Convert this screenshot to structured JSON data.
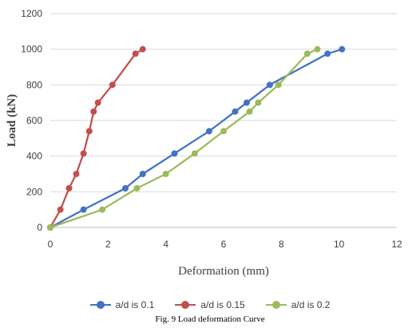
{
  "chart_data": {
    "type": "line",
    "xlabel": "Deformation (mm)",
    "ylabel": "Load (kN)",
    "xlim": [
      0,
      12
    ],
    "ylim": [
      0,
      1200
    ],
    "x_ticks": [
      0,
      2,
      4,
      6,
      8,
      10,
      12
    ],
    "y_ticks": [
      0,
      200,
      400,
      600,
      800,
      1000,
      1200
    ],
    "grid": "horizontal",
    "legend_position": "bottom",
    "series": [
      {
        "name": "a/d is 0.1",
        "color": "#4472c4",
        "points": [
          [
            0,
            0
          ],
          [
            1.15,
            100
          ],
          [
            2.6,
            220
          ],
          [
            3.2,
            300
          ],
          [
            4.3,
            415
          ],
          [
            5.5,
            540
          ],
          [
            6.4,
            650
          ],
          [
            6.8,
            700
          ],
          [
            7.6,
            800
          ],
          [
            9.6,
            975
          ],
          [
            10.1,
            1000
          ]
        ]
      },
      {
        "name": "a/d is 0.15",
        "color": "#c0504d",
        "points": [
          [
            0,
            0
          ],
          [
            0.35,
            100
          ],
          [
            0.65,
            220
          ],
          [
            0.9,
            300
          ],
          [
            1.15,
            415
          ],
          [
            1.35,
            540
          ],
          [
            1.5,
            650
          ],
          [
            1.65,
            700
          ],
          [
            2.15,
            800
          ],
          [
            2.95,
            975
          ],
          [
            3.2,
            1000
          ]
        ]
      },
      {
        "name": "a/d is 0.2",
        "color": "#9bbb59",
        "points": [
          [
            0,
            0
          ],
          [
            1.8,
            100
          ],
          [
            3.0,
            220
          ],
          [
            4.0,
            300
          ],
          [
            5.0,
            415
          ],
          [
            6.0,
            540
          ],
          [
            6.9,
            650
          ],
          [
            7.2,
            700
          ],
          [
            7.9,
            800
          ],
          [
            8.9,
            975
          ],
          [
            9.25,
            1000
          ]
        ]
      }
    ]
  },
  "caption": "Fig. 9  Load deformation Curve"
}
